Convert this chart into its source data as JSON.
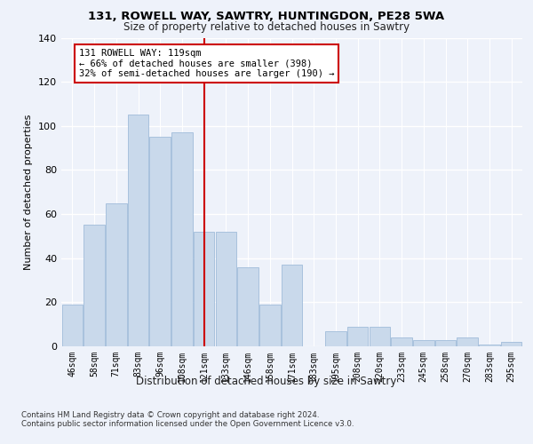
{
  "title_line1": "131, ROWELL WAY, SAWTRY, HUNTINGDON, PE28 5WA",
  "title_line2": "Size of property relative to detached houses in Sawtry",
  "xlabel": "Distribution of detached houses by size in Sawtry",
  "ylabel": "Number of detached properties",
  "categories": [
    "46sqm",
    "58sqm",
    "71sqm",
    "83sqm",
    "96sqm",
    "108sqm",
    "121sqm",
    "133sqm",
    "146sqm",
    "158sqm",
    "171sqm",
    "183sqm",
    "195sqm",
    "208sqm",
    "220sqm",
    "233sqm",
    "245sqm",
    "258sqm",
    "270sqm",
    "283sqm",
    "295sqm"
  ],
  "values": [
    19,
    55,
    65,
    105,
    95,
    97,
    52,
    52,
    36,
    19,
    37,
    0,
    7,
    9,
    9,
    4,
    3,
    3,
    4,
    1,
    2
  ],
  "bar_color": "#c9d9eb",
  "bar_edge_color": "#a0bcda",
  "vline_x": 6,
  "vline_color": "#cc0000",
  "annotation_text": "131 ROWELL WAY: 119sqm\n← 66% of detached houses are smaller (398)\n32% of semi-detached houses are larger (190) →",
  "annotation_box_color": "#ffffff",
  "annotation_box_edge_color": "#cc0000",
  "ylim": [
    0,
    140
  ],
  "yticks": [
    0,
    20,
    40,
    60,
    80,
    100,
    120,
    140
  ],
  "bg_color": "#eef2fa",
  "grid_color": "#ffffff",
  "footer_text": "Contains HM Land Registry data © Crown copyright and database right 2024.\nContains public sector information licensed under the Open Government Licence v3.0."
}
